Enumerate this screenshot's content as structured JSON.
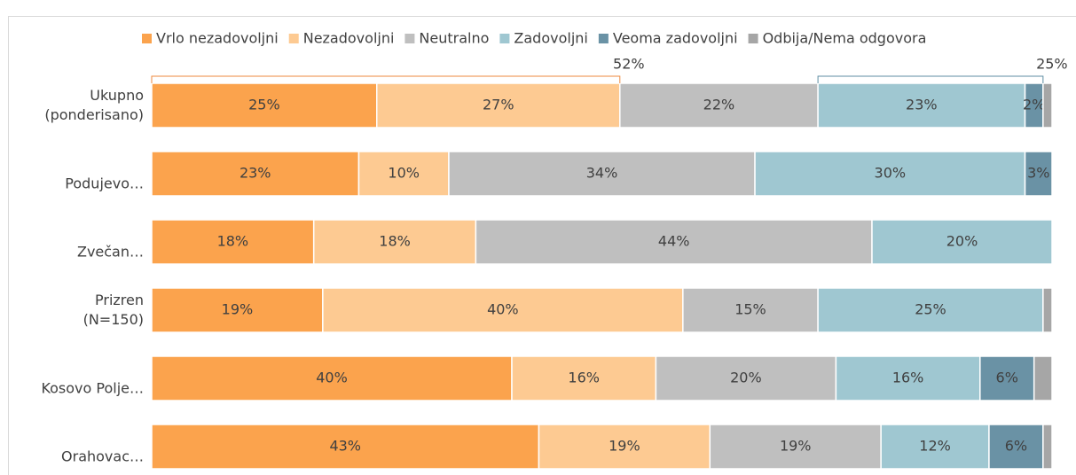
{
  "chart_data": {
    "type": "stacked-bar-horizontal",
    "categories": [
      "Ukupno\n(ponderisano)",
      "Podujevo…",
      "Zvečan…",
      "Prizren\n(N=150)",
      "Kosovo Polje…",
      "Orahovac…"
    ],
    "xlim": [
      0,
      100
    ],
    "series": [
      {
        "name": "Vrlo nezadovoljni",
        "color": "#fba34d",
        "values": [
          25,
          23,
          18,
          19,
          40,
          43
        ],
        "value_labels": [
          "25%",
          "23%",
          "18%",
          "19%",
          "40%",
          "43%"
        ]
      },
      {
        "name": "Nezadovoljni",
        "color": "#fdca92",
        "values": [
          27,
          10,
          18,
          40,
          16,
          19
        ],
        "value_labels": [
          "27%",
          "10%",
          "18%",
          "40%",
          "16%",
          "19%"
        ]
      },
      {
        "name": "Neutralno",
        "color": "#bfbfbf",
        "values": [
          22,
          34,
          44,
          15,
          20,
          19
        ],
        "value_labels": [
          "22%",
          "34%",
          "44%",
          "15%",
          "20%",
          "19%"
        ]
      },
      {
        "name": "Zadovoljni",
        "color": "#9fc7d1",
        "values": [
          23,
          30,
          20,
          25,
          16,
          12
        ],
        "value_labels": [
          "23%",
          "30%",
          "20%",
          "25%",
          "16%",
          "12%"
        ]
      },
      {
        "name": "Veoma zadovoljni",
        "color": "#6a92a5",
        "values": [
          2,
          3,
          0,
          0,
          6,
          6
        ],
        "value_labels": [
          "2%",
          "3%",
          null,
          null,
          "6%",
          "6%"
        ]
      },
      {
        "name": "Odbija/Nema odgovora",
        "color": "#a6a6a6",
        "values": [
          1,
          0,
          0,
          1,
          2,
          1
        ]
      }
    ],
    "annotations": [
      {
        "text": "52%",
        "color": "#ee8a3f"
      },
      {
        "text": "25%",
        "color": "#5f8ea3"
      }
    ]
  }
}
